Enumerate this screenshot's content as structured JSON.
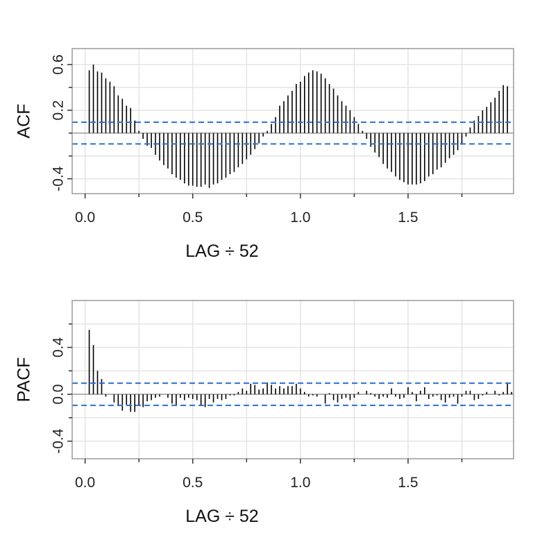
{
  "chart_data": [
    {
      "type": "bar",
      "ylabel": "ACF",
      "xlabel": "LAG ÷ 52",
      "xlim": [
        -0.06,
        1.99
      ],
      "ylim": [
        -0.53,
        0.74
      ],
      "x_ticks": [
        0.0,
        0.5,
        1.0,
        1.5
      ],
      "x_tick_labels": [
        "0.0",
        "0.5",
        "1.0",
        "1.5"
      ],
      "x_minor_ticks": [
        0.25,
        0.75,
        1.25,
        1.75
      ],
      "y_ticks": [
        -0.4,
        0.2,
        0.6
      ],
      "y_tick_labels": [
        "-0.4",
        "0.2",
        "0.6"
      ],
      "y_minor_ticks": [
        -0.2,
        0.0,
        0.4
      ],
      "grid_y": [
        -0.4,
        -0.2,
        0.2,
        0.4,
        0.6
      ],
      "zero_line": 0,
      "confidence_bound": 0.095,
      "lag_step": 0.01923,
      "first_lag": 0.01923,
      "values": [
        0.55,
        0.6,
        0.54,
        0.53,
        0.48,
        0.45,
        0.41,
        0.33,
        0.3,
        0.24,
        0.22,
        0.11,
        0.02,
        -0.05,
        -0.11,
        -0.13,
        -0.19,
        -0.24,
        -0.28,
        -0.31,
        -0.36,
        -0.39,
        -0.41,
        -0.44,
        -0.46,
        -0.46,
        -0.47,
        -0.47,
        -0.45,
        -0.48,
        -0.45,
        -0.44,
        -0.41,
        -0.39,
        -0.36,
        -0.34,
        -0.3,
        -0.27,
        -0.23,
        -0.19,
        -0.14,
        -0.09,
        -0.03,
        0.02,
        0.08,
        0.14,
        0.24,
        0.28,
        0.33,
        0.37,
        0.43,
        0.45,
        0.5,
        0.53,
        0.55,
        0.54,
        0.52,
        0.48,
        0.43,
        0.39,
        0.33,
        0.28,
        0.24,
        0.2,
        0.14,
        0.08,
        0.02,
        -0.05,
        -0.12,
        -0.17,
        -0.21,
        -0.27,
        -0.31,
        -0.34,
        -0.38,
        -0.41,
        -0.43,
        -0.45,
        -0.45,
        -0.45,
        -0.44,
        -0.42,
        -0.38,
        -0.36,
        -0.32,
        -0.3,
        -0.26,
        -0.22,
        -0.19,
        -0.15,
        -0.1,
        -0.03,
        0.05,
        0.11,
        0.15,
        0.2,
        0.23,
        0.27,
        0.31,
        0.37,
        0.42,
        0.41
      ]
    },
    {
      "type": "bar",
      "ylabel": "PACF",
      "xlabel": "LAG ÷ 52",
      "xlim": [
        -0.06,
        1.99
      ],
      "ylim": [
        -0.55,
        0.8
      ],
      "x_ticks": [
        0.0,
        0.5,
        1.0,
        1.5
      ],
      "x_tick_labels": [
        "0.0",
        "0.5",
        "1.0",
        "1.5"
      ],
      "x_minor_ticks": [
        0.25,
        0.75,
        1.25,
        1.75
      ],
      "y_ticks": [
        -0.4,
        0.0,
        0.4
      ],
      "y_tick_labels": [
        "-0.4",
        "0.0",
        "0.4"
      ],
      "y_minor_ticks": [
        -0.2,
        0.2,
        0.6
      ],
      "grid_y": [
        -0.4,
        -0.2,
        0.2,
        0.4,
        0.6
      ],
      "zero_line": 0,
      "confidence_bound": 0.095,
      "lag_step": 0.01923,
      "first_lag": 0.01923,
      "values": [
        0.55,
        0.42,
        0.2,
        0.13,
        -0.02,
        0.0,
        -0.07,
        -0.1,
        -0.14,
        -0.09,
        -0.15,
        -0.15,
        -0.1,
        -0.11,
        -0.06,
        -0.05,
        -0.03,
        -0.02,
        0.0,
        -0.03,
        -0.08,
        -0.09,
        -0.03,
        -0.05,
        -0.03,
        -0.04,
        -0.05,
        -0.1,
        -0.11,
        -0.04,
        -0.07,
        -0.04,
        -0.05,
        -0.04,
        -0.01,
        -0.01,
        0.02,
        0.05,
        0.03,
        0.09,
        0.08,
        0.04,
        0.05,
        0.1,
        0.08,
        0.05,
        0.07,
        0.05,
        0.07,
        0.07,
        0.09,
        0.05,
        0.02,
        -0.02,
        -0.01,
        -0.02,
        0.0,
        -0.08,
        0.01,
        -0.05,
        -0.07,
        -0.04,
        -0.03,
        -0.05,
        -0.03,
        0.02,
        0.0,
        0.03,
        0.01,
        -0.02,
        -0.04,
        -0.02,
        -0.03,
        0.05,
        -0.02,
        -0.04,
        -0.03,
        0.06,
        0.02,
        -0.06,
        0.03,
        0.06,
        -0.04,
        -0.02,
        -0.01,
        -0.05,
        -0.07,
        -0.03,
        -0.02,
        -0.08,
        -0.02,
        0.03,
        0.03,
        -0.05,
        -0.04,
        -0.01,
        0.02,
        0.0,
        0.03,
        -0.01,
        0.02,
        0.1,
        0.02
      ]
    }
  ]
}
